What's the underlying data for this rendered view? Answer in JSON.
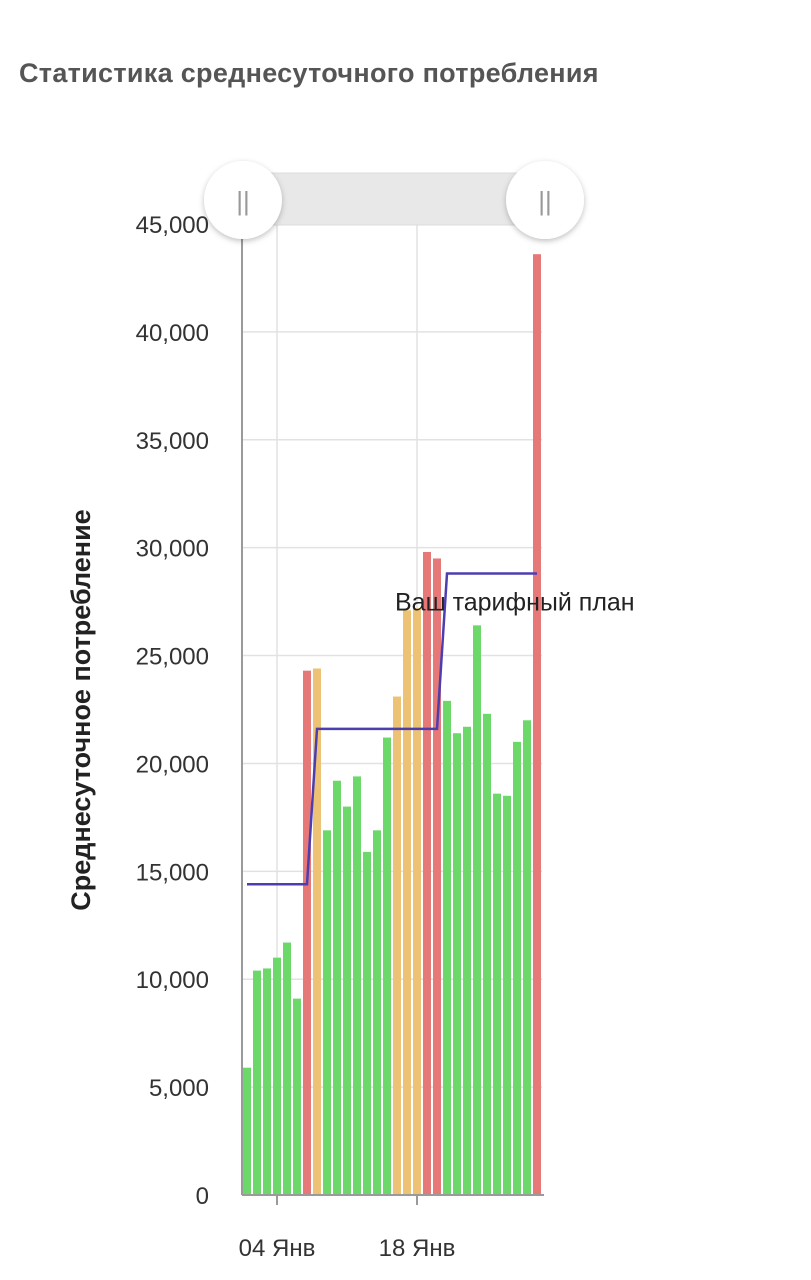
{
  "page": {
    "title": "Статистика среднесуточного потребления"
  },
  "colors": {
    "green": "#6dd86a",
    "orange": "#eec274",
    "red": "#e67878",
    "plan_line": "#4b3fb0",
    "grid": "#e2e2e2",
    "axis": "#9a9a9a",
    "navigator_bg": "#e8e8e8"
  },
  "navigator": {
    "left_handle_icon": "grip-icon",
    "right_handle_icon": "grip-icon",
    "grip_glyph": "||"
  },
  "chart_data": {
    "type": "bar",
    "title": "",
    "ylabel": "Среднесуточное потребление",
    "xlabel": "",
    "ylim": [
      0,
      45000
    ],
    "y_ticks": [
      0,
      5000,
      10000,
      15000,
      20000,
      25000,
      30000,
      35000,
      40000,
      45000
    ],
    "y_tick_labels": [
      "0",
      "5,000",
      "10,000",
      "15,000",
      "20,000",
      "25,000",
      "30,000",
      "35,000",
      "40,000",
      "45,000"
    ],
    "x_ticks": [
      {
        "index": 3.5,
        "label": "04 Янв"
      },
      {
        "index": 17.5,
        "label": "18 Янв"
      }
    ],
    "grid": true,
    "bars": [
      {
        "value": 5900,
        "status": "green"
      },
      {
        "value": 10400,
        "status": "green"
      },
      {
        "value": 10500,
        "status": "green"
      },
      {
        "value": 11000,
        "status": "green"
      },
      {
        "value": 11700,
        "status": "green"
      },
      {
        "value": 9100,
        "status": "green"
      },
      {
        "value": 24300,
        "status": "red"
      },
      {
        "value": 24400,
        "status": "orange"
      },
      {
        "value": 16900,
        "status": "green"
      },
      {
        "value": 19200,
        "status": "green"
      },
      {
        "value": 18000,
        "status": "green"
      },
      {
        "value": 19400,
        "status": "green"
      },
      {
        "value": 15900,
        "status": "green"
      },
      {
        "value": 16900,
        "status": "green"
      },
      {
        "value": 21200,
        "status": "green"
      },
      {
        "value": 23100,
        "status": "orange"
      },
      {
        "value": 27100,
        "status": "orange"
      },
      {
        "value": 27200,
        "status": "orange"
      },
      {
        "value": 29800,
        "status": "red"
      },
      {
        "value": 29500,
        "status": "red"
      },
      {
        "value": 22900,
        "status": "green"
      },
      {
        "value": 21400,
        "status": "green"
      },
      {
        "value": 21700,
        "status": "green"
      },
      {
        "value": 26400,
        "status": "green"
      },
      {
        "value": 22300,
        "status": "green"
      },
      {
        "value": 18600,
        "status": "green"
      },
      {
        "value": 18500,
        "status": "green"
      },
      {
        "value": 21000,
        "status": "green"
      },
      {
        "value": 22000,
        "status": "green"
      },
      {
        "value": 43600,
        "status": "red"
      }
    ],
    "plan": {
      "name": "Ваш тарифный план",
      "segments": [
        {
          "from": 0,
          "to": 6,
          "value": 14400
        },
        {
          "from": 7,
          "to": 19,
          "value": 21600
        },
        {
          "from": 20,
          "to": 29,
          "value": 28800
        }
      ]
    }
  }
}
